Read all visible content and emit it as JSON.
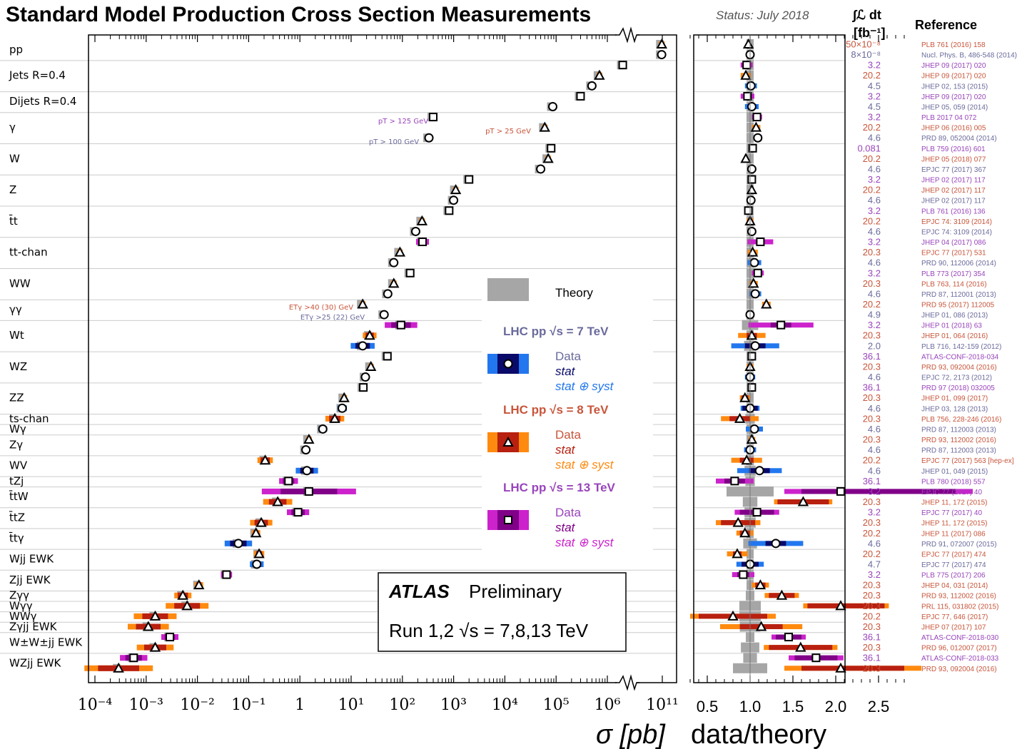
{
  "header": {
    "title": "Standard Model Production Cross Section Measurements",
    "status": "Status: July 2018",
    "lumi_header": "∫ℒ dt",
    "lumi_unit": "[fb⁻¹]",
    "reference_header": "Reference"
  },
  "labels": {
    "xlabel_main": "σ [pb]",
    "xlabel_ratio": "data/theory",
    "atlas": "ATLAS",
    "preliminary": "Preliminary",
    "run": "Run 1,2  √s = 7,8,13 TeV"
  },
  "colors": {
    "theory": "#a6a6a6",
    "e7_text": "#6a6a9c",
    "e7_stat": "#0a0a6a",
    "e7_syst": "#2277ee",
    "e8_text": "#c8553a",
    "e8_stat": "#b82010",
    "e8_syst": "#ff8a10",
    "e13_text": "#9944bb",
    "e13_stat": "#800088",
    "e13_syst": "#cc22cc"
  },
  "legend": {
    "theory": "Theory",
    "groups": [
      {
        "energy": "7",
        "title": "LHC pp  √s = 7 TeV",
        "data": "Data",
        "stat": "stat",
        "syst": "stat ⊕ syst"
      },
      {
        "energy": "8",
        "title": "LHC pp  √s = 8 TeV",
        "data": "Data",
        "stat": "stat",
        "syst": "stat ⊕ syst"
      },
      {
        "energy": "13",
        "title": "LHC pp  √s = 13 TeV",
        "data": "Data",
        "stat": "stat",
        "syst": "stat ⊕ syst"
      }
    ]
  },
  "annotations": [
    {
      "text": "pT > 125 GeV",
      "energy": "13"
    },
    {
      "text": "pT > 100 GeV",
      "energy": "7"
    },
    {
      "text": "pT > 25 GeV",
      "energy": "8"
    },
    {
      "text": "ETγ >40 (30) GeV",
      "energy": "8"
    },
    {
      "text": "ETγ >25 (22) GeV",
      "energy": "7"
    }
  ],
  "chart_data": {
    "type": "scatter",
    "x_axis": {
      "scale": "log",
      "tick_labels": [
        "10⁻⁴",
        "10⁻³",
        "10⁻²",
        "10⁻¹",
        "1",
        "10¹",
        "10²",
        "10³",
        "10⁴",
        "10⁵",
        "10⁶",
        "10¹¹"
      ],
      "broken_axis_between": [
        "10⁶",
        "10¹¹"
      ],
      "xlabel": "σ [pb]"
    },
    "ratio_axis": {
      "xlim": [
        0.3,
        2.85
      ],
      "tick_labels": [
        "0.5",
        "1.0",
        "1.5",
        "2.0",
        "2.5"
      ],
      "xlabel": "data/theory"
    },
    "processes": [
      {
        "name": "pp",
        "meas": [
          {
            "e": "8",
            "xsec": 96000000000.0,
            "ratio": 0.98,
            "stat": 0.0,
            "syst": 0.0,
            "lumi": "50×10⁻⁸",
            "ref": "PLB 761 (2016) 158"
          },
          {
            "e": "7",
            "xsec": 95000000000.0,
            "ratio": 1.0,
            "stat": 0.0,
            "syst": 0.0,
            "lumi": "8×10⁻⁸",
            "ref": "Nucl. Phys. B, 486-548 (2014)"
          }
        ]
      },
      {
        "name": "Jets R=0.4",
        "meas": [
          {
            "e": "13",
            "xsec": 2000000.0,
            "ratio": 0.96,
            "stat": 0.01,
            "syst": 0.07,
            "lumi": "3.2",
            "ref": "JHEP 09 (2017) 020"
          },
          {
            "e": "8",
            "xsec": 700000.0,
            "ratio": 0.95,
            "stat": 0.01,
            "syst": 0.06,
            "lumi": "20.2",
            "ref": "JHEP 09 (2017) 020"
          },
          {
            "e": "7",
            "xsec": 500000.0,
            "ratio": 1.01,
            "stat": 0.01,
            "syst": 0.07,
            "lumi": "4.5",
            "ref": "JHEP 02, 153 (2015)"
          }
        ]
      },
      {
        "name": "Dijets R=0.4",
        "meas": [
          {
            "e": "13",
            "xsec": 300000.0,
            "ratio": 0.97,
            "stat": 0.01,
            "syst": 0.08,
            "lumi": "3.2",
            "ref": "JHEP 09 (2017) 020"
          },
          {
            "e": "7",
            "xsec": 86000.0,
            "ratio": 1.02,
            "stat": 0.01,
            "syst": 0.08,
            "lumi": "4.5",
            "ref": "JHEP 05, 059 (2014)"
          }
        ]
      },
      {
        "name": "γ",
        "meas": [
          {
            "e": "13",
            "xsec": 400,
            "ratio": 1.08,
            "stat": 0.01,
            "syst": 0.06,
            "lumi": "3.2",
            "ref": "PLB 2017 04 072"
          },
          {
            "e": "8",
            "xsec": 60000.0,
            "ratio": 1.07,
            "stat": 0.01,
            "syst": 0.05,
            "lumi": "20.2",
            "ref": "JHEP 06 (2016) 005"
          },
          {
            "e": "7",
            "xsec": 330,
            "ratio": 1.09,
            "stat": 0.01,
            "syst": 0.05,
            "lumi": "4.6",
            "ref": "PRD 89, 052004 (2014)"
          }
        ]
      },
      {
        "name": "W",
        "meas": [
          {
            "e": "13",
            "xsec": 80000.0,
            "ratio": 1.03,
            "stat": 0.01,
            "syst": 0.03,
            "lumi": "0.081",
            "ref": "PLB 759 (2016) 601"
          },
          {
            "e": "8",
            "xsec": 70000.0,
            "ratio": 0.95,
            "stat": 0.01,
            "syst": 0.02,
            "lumi": "20.2",
            "ref": "JHEP 05 (2018) 077"
          },
          {
            "e": "7",
            "xsec": 50000.0,
            "ratio": 1.02,
            "stat": 0.01,
            "syst": 0.02,
            "lumi": "4.6",
            "ref": "EPJC 77 (2017) 367"
          }
        ]
      },
      {
        "name": "Z",
        "meas": [
          {
            "e": "13",
            "xsec": 2000,
            "ratio": 1.02,
            "stat": 0.01,
            "syst": 0.03,
            "lumi": "3.2",
            "ref": "JHEP 02 (2017) 117"
          },
          {
            "e": "8",
            "xsec": 1100,
            "ratio": 1.02,
            "stat": 0.01,
            "syst": 0.02,
            "lumi": "20.2",
            "ref": "JHEP 02 (2017) 117"
          },
          {
            "e": "7",
            "xsec": 1000,
            "ratio": 1.01,
            "stat": 0.01,
            "syst": 0.02,
            "lumi": "4.6",
            "ref": "JHEP 02 (2017) 117"
          }
        ]
      },
      {
        "name": "t̄t",
        "meas": [
          {
            "e": "13",
            "xsec": 818,
            "ratio": 0.98,
            "stat": 0.01,
            "syst": 0.04,
            "lumi": "3.2",
            "ref": "PLB 761 (2016) 136"
          },
          {
            "e": "8",
            "xsec": 242,
            "ratio": 1.0,
            "stat": 0.01,
            "syst": 0.04,
            "lumi": "20.2",
            "ref": "EPJC 74: 3109 (2014)"
          },
          {
            "e": "7",
            "xsec": 182,
            "ratio": 1.02,
            "stat": 0.01,
            "syst": 0.04,
            "lumi": "4.6",
            "ref": "EPJC 74: 3109 (2014)"
          }
        ]
      },
      {
        "name": "tt-chan",
        "meas": [
          {
            "e": "13",
            "xsec": 247,
            "ratio": 1.12,
            "stat": 0.05,
            "syst": 0.15,
            "lumi": "3.2",
            "ref": "JHEP 04 (2017) 086"
          },
          {
            "e": "8",
            "xsec": 89.6,
            "ratio": 1.03,
            "stat": 0.02,
            "syst": 0.06,
            "lumi": "20.3",
            "ref": "EPJC 77 (2017) 531"
          },
          {
            "e": "7",
            "xsec": 68,
            "ratio": 1.05,
            "stat": 0.03,
            "syst": 0.08,
            "lumi": "4.6",
            "ref": "PRD 90, 112006 (2014)"
          }
        ]
      },
      {
        "name": "WW",
        "meas": [
          {
            "e": "13",
            "xsec": 142,
            "ratio": 1.09,
            "stat": 0.04,
            "syst": 0.07,
            "lumi": "3.2",
            "ref": "PLB 773 (2017) 354"
          },
          {
            "e": "8",
            "xsec": 68,
            "ratio": 1.04,
            "stat": 0.02,
            "syst": 0.05,
            "lumi": "20.3",
            "ref": "PLB 763, 114 (2016)"
          },
          {
            "e": "7",
            "xsec": 51.9,
            "ratio": 1.06,
            "stat": 0.03,
            "syst": 0.07,
            "lumi": "4.6",
            "ref": "PRD 87, 112001 (2013)"
          }
        ]
      },
      {
        "name": "γγ",
        "meas": [
          {
            "e": "8",
            "xsec": 16.8,
            "ratio": 1.19,
            "stat": 0.01,
            "syst": 0.05,
            "lumi": "20.2",
            "ref": "PRD 95 (2017) 112005"
          },
          {
            "e": "7",
            "xsec": 44,
            "ratio": 1.0,
            "stat": 0.02,
            "syst": 0.05,
            "lumi": "4.9",
            "ref": "JHEP 01, 086 (2013)"
          }
        ]
      },
      {
        "name": "Wt",
        "meas": [
          {
            "e": "13",
            "xsec": 94,
            "ratio": 1.36,
            "stat": 0.12,
            "syst": 0.38,
            "lumi": "3.2",
            "ref": "JHEP 01 (2018) 63"
          },
          {
            "e": "8",
            "xsec": 23,
            "ratio": 1.02,
            "stat": 0.06,
            "syst": 0.16,
            "lumi": "20.3",
            "ref": "JHEP 01, 064 (2016)"
          },
          {
            "e": "7",
            "xsec": 16.8,
            "ratio": 1.06,
            "stat": 0.12,
            "syst": 0.28,
            "lumi": "2.0",
            "ref": "PLB 716, 142-159 (2012)"
          }
        ]
      },
      {
        "name": "WZ",
        "meas": [
          {
            "e": "13",
            "xsec": 51,
            "ratio": 1.02,
            "stat": 0.02,
            "syst": 0.04,
            "lumi": "36.1",
            "ref": "ATLAS-CONF-2018-034"
          },
          {
            "e": "8",
            "xsec": 24.3,
            "ratio": 1.0,
            "stat": 0.02,
            "syst": 0.04,
            "lumi": "20.3",
            "ref": "PRD 93, 092004 (2016)"
          },
          {
            "e": "7",
            "xsec": 19,
            "ratio": 1.0,
            "stat": 0.04,
            "syst": 0.06,
            "lumi": "4.6",
            "ref": "EPJC 72, 2173 (2012)"
          }
        ]
      },
      {
        "name": "ZZ",
        "meas": [
          {
            "e": "13",
            "xsec": 17.3,
            "ratio": 1.02,
            "stat": 0.03,
            "syst": 0.04,
            "lumi": "36.1",
            "ref": "PRD 97 (2018) 032005"
          },
          {
            "e": "8",
            "xsec": 7.3,
            "ratio": 0.94,
            "stat": 0.04,
            "syst": 0.06,
            "lumi": "20.3",
            "ref": "JHEP 01, 099 (2017)"
          },
          {
            "e": "7",
            "xsec": 6.7,
            "ratio": 1.0,
            "stat": 0.09,
            "syst": 0.11,
            "lumi": "4.6",
            "ref": "JHEP 03, 128 (2013)"
          }
        ]
      },
      {
        "name": "ts-chan",
        "meas": [
          {
            "e": "8",
            "xsec": 4.8,
            "ratio": 0.88,
            "stat": 0.12,
            "syst": 0.22,
            "lumi": "20.3",
            "ref": "PLB 756, 228-246 (2016)"
          }
        ]
      },
      {
        "name": "Wγ",
        "meas": [
          {
            "e": "7",
            "xsec": 2.8,
            "ratio": 1.05,
            "stat": 0.03,
            "syst": 0.1,
            "lumi": "4.6",
            "ref": "PRD 87, 112003 (2013)"
          }
        ]
      },
      {
        "name": "Zγ",
        "meas": [
          {
            "e": "8",
            "xsec": 1.5,
            "ratio": 1.02,
            "stat": 0.01,
            "syst": 0.04,
            "lumi": "20.3",
            "ref": "PRD 93, 112002 (2016)"
          },
          {
            "e": "7",
            "xsec": 1.31,
            "ratio": 1.0,
            "stat": 0.03,
            "syst": 0.07,
            "lumi": "4.6",
            "ref": "PRD 87, 112003 (2013)"
          }
        ]
      },
      {
        "name": "WV",
        "meas": [
          {
            "e": "8",
            "xsec": 0.21,
            "ratio": 0.96,
            "stat": 0.08,
            "syst": 0.18,
            "lumi": "20.2",
            "ref": "EPJC 77 (2017) 563 [hep-ex]"
          },
          {
            "e": "7",
            "xsec": 1.37,
            "ratio": 1.11,
            "stat": 0.12,
            "syst": 0.26,
            "lumi": "4.6",
            "ref": "JHEP 01, 049 (2015)"
          }
        ]
      },
      {
        "name": "tZj",
        "meas": [
          {
            "e": "13",
            "xsec": 0.6,
            "ratio": 0.82,
            "stat": 0.12,
            "syst": 0.22,
            "lumi": "36.1",
            "ref": "PLB 780 (2018) 557"
          }
        ]
      },
      {
        "name": "t̄tW",
        "meas": [
          {
            "e": "13",
            "xsec": 1.5,
            "ratio": 2.5,
            "stat": 0.9,
            "syst": 1.1,
            "lumi": "3.2",
            "ref": "EPJC 77 (2017) 40"
          },
          {
            "e": "8",
            "xsec": 0.369,
            "ratio": 1.62,
            "stat": 0.3,
            "syst": 0.34,
            "lumi": "20.3",
            "ref": "JHEP 11, 172 (2015)"
          }
        ]
      },
      {
        "name": "t̄tZ",
        "meas": [
          {
            "e": "13",
            "xsec": 0.92,
            "ratio": 1.08,
            "stat": 0.2,
            "syst": 0.26,
            "lumi": "3.2",
            "ref": "EPJC 77 (2017) 40"
          },
          {
            "e": "8",
            "xsec": 0.176,
            "ratio": 0.86,
            "stat": 0.2,
            "syst": 0.26,
            "lumi": "20.3",
            "ref": "JHEP 11, 172 (2015)"
          }
        ]
      },
      {
        "name": "t̄tγ",
        "meas": [
          {
            "e": "8",
            "xsec": 0.139,
            "ratio": 0.94,
            "stat": 0.06,
            "syst": 0.1,
            "lumi": "20.2",
            "ref": "JHEP 11 (2017) 086"
          },
          {
            "e": "7",
            "xsec": 0.063,
            "ratio": 1.3,
            "stat": 0.12,
            "syst": 0.32,
            "lumi": "4.6",
            "ref": "PRD 91, 072007 (2015)"
          }
        ]
      },
      {
        "name": "Wjj EWK",
        "meas": [
          {
            "e": "8",
            "xsec": 0.16,
            "ratio": 0.85,
            "stat": 0.05,
            "syst": 0.12,
            "lumi": "20.2",
            "ref": "EPJC 77 (2017) 474"
          },
          {
            "e": "7",
            "xsec": 0.144,
            "ratio": 1.0,
            "stat": 0.1,
            "syst": 0.16,
            "lumi": "4.7",
            "ref": "EPJC 77 (2017) 474"
          }
        ]
      },
      {
        "name": "Zjj EWK",
        "meas": [
          {
            "e": "13",
            "xsec": 0.037,
            "ratio": 0.92,
            "stat": 0.07,
            "syst": 0.13,
            "lumi": "3.2",
            "ref": "PLB 775 (2017) 206"
          },
          {
            "e": "8",
            "xsec": 0.0107,
            "ratio": 1.12,
            "stat": 0.06,
            "syst": 0.1,
            "lumi": "20.3",
            "ref": "JHEP 04, 031 (2014)"
          }
        ]
      },
      {
        "name": "Zγγ",
        "meas": [
          {
            "e": "8",
            "xsec": 0.0052,
            "ratio": 1.37,
            "stat": 0.15,
            "syst": 0.2,
            "lumi": "20.3",
            "ref": "PRD 93, 112002 (2016)"
          }
        ]
      },
      {
        "name": "Wγγ",
        "meas": [
          {
            "e": "8",
            "xsec": 0.0063,
            "ratio": 2.12,
            "stat": 0.45,
            "syst": 0.5,
            "lumi": "20.3",
            "ref": "PRL 115, 031802 (2015)"
          }
        ]
      },
      {
        "name": "WWγ",
        "meas": [
          {
            "e": "8",
            "xsec": 0.0015,
            "ratio": 0.8,
            "stat": 0.4,
            "syst": 0.5,
            "lumi": "20.2",
            "ref": "EPJC 77, 646 (2017)"
          }
        ]
      },
      {
        "name": "Zγjj EWK",
        "meas": [
          {
            "e": "8",
            "xsec": 0.0011,
            "ratio": 1.13,
            "stat": 0.25,
            "syst": 0.48,
            "lumi": "20.3",
            "ref": "JHEP 07 (2017) 107"
          }
        ]
      },
      {
        "name": "W±W±jj EWK",
        "meas": [
          {
            "e": "13",
            "xsec": 0.0029,
            "ratio": 1.45,
            "stat": 0.15,
            "syst": 0.2,
            "lumi": "36.1",
            "ref": "ATLAS-CONF-2018-030"
          },
          {
            "e": "8",
            "xsec": 0.0015,
            "ratio": 1.59,
            "stat": 0.37,
            "syst": 0.43,
            "lumi": "20.3",
            "ref": "PRD 96, 012007 (2017)"
          }
        ]
      },
      {
        "name": "WZjj EWK",
        "meas": [
          {
            "e": "13",
            "xsec": 0.00057,
            "ratio": 1.77,
            "stat": 0.25,
            "syst": 0.32,
            "lumi": "36.1",
            "ref": "ATLAS-CONF-2018-033"
          },
          {
            "e": "8",
            "xsec": 0.00029,
            "ratio": 2.2,
            "stat": 0.6,
            "syst": 0.8,
            "lumi": "20.3",
            "ref": "PRD 93, 092004 (2016)"
          }
        ]
      }
    ]
  }
}
